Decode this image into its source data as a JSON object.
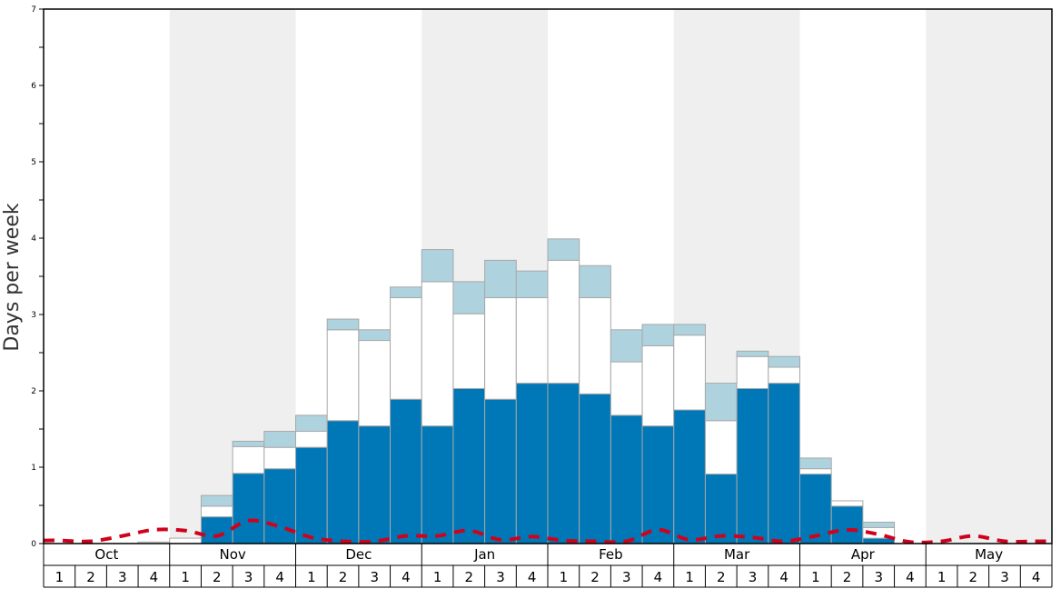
{
  "chart_data": {
    "type": "bar",
    "stacked": true,
    "title": "",
    "xlabel": "",
    "ylabel": "Days per week",
    "ylim": [
      0,
      7
    ],
    "y_ticks": [
      0,
      1,
      2,
      3,
      4,
      5,
      6,
      7
    ],
    "months": [
      "Oct",
      "Nov",
      "Dec",
      "Jan",
      "Feb",
      "Mar",
      "Apr",
      "May"
    ],
    "weeks": [
      "1",
      "2",
      "3",
      "4"
    ],
    "series": [
      {
        "name": "dark",
        "color": "#0077b6",
        "values": [
          0,
          0,
          0,
          0,
          0,
          0.35,
          0.92,
          0.98,
          1.26,
          1.61,
          1.54,
          1.89,
          1.54,
          2.03,
          1.89,
          2.1,
          2.1,
          1.96,
          1.68,
          1.54,
          1.75,
          0.91,
          2.03,
          2.1,
          0.91,
          0.49,
          0.07,
          0,
          0,
          0,
          0,
          0
        ]
      },
      {
        "name": "white",
        "color": "#ffffff",
        "values": [
          0,
          0,
          0,
          0.02,
          0.07,
          0.14,
          0.35,
          0.28,
          0.21,
          1.19,
          1.12,
          1.33,
          1.89,
          0.98,
          1.33,
          1.12,
          1.61,
          1.26,
          0.7,
          1.05,
          0.98,
          0.7,
          0.42,
          0.21,
          0.07,
          0.07,
          0.14,
          0,
          0,
          0,
          0,
          0
        ]
      },
      {
        "name": "light",
        "color": "#aed3df",
        "values": [
          0,
          0,
          0,
          0,
          0,
          0.14,
          0.07,
          0.21,
          0.21,
          0.14,
          0.14,
          0.14,
          0.42,
          0.42,
          0.49,
          0.35,
          0.28,
          0.42,
          0.42,
          0.28,
          0.14,
          0.49,
          0.07,
          0.14,
          0.14,
          0,
          0.07,
          0,
          0,
          0,
          0,
          0
        ]
      }
    ],
    "line": {
      "name": "dashed",
      "color": "#d0021b",
      "values": [
        0.04,
        0.03,
        0.1,
        0.18,
        0.17,
        0.1,
        0.3,
        0.22,
        0.08,
        0.03,
        0.03,
        0.1,
        0.1,
        0.17,
        0.05,
        0.09,
        0.04,
        0.03,
        0.03,
        0.18,
        0.05,
        0.1,
        0.08,
        0.03,
        0.1,
        0.18,
        0.12,
        0.02,
        0.03,
        0.1,
        0.03,
        0.03
      ]
    },
    "shaded_months": [
      "Nov",
      "Jan",
      "Mar",
      "May"
    ],
    "grid": false,
    "legend": "none"
  }
}
